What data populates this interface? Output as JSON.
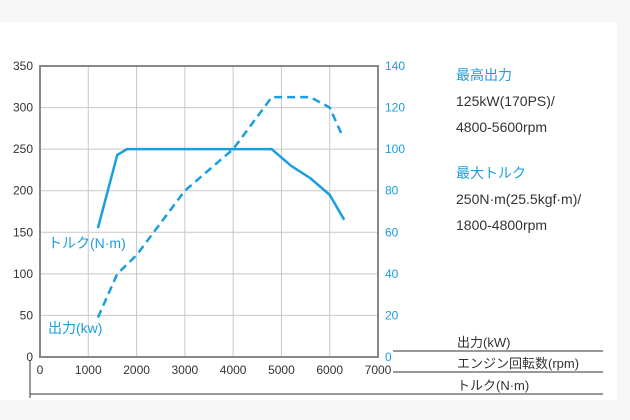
{
  "chart_data": {
    "type": "line",
    "x_axis": {
      "label": "エンジン回転数(rpm)",
      "range": [
        0,
        7000
      ],
      "ticks": [
        0,
        1000,
        2000,
        3000,
        4000,
        5000,
        6000,
        7000
      ]
    },
    "y_left": {
      "label": "トルク(N·m)",
      "range": [
        0,
        350
      ],
      "ticks": [
        0,
        50,
        100,
        150,
        200,
        250,
        300,
        350
      ]
    },
    "y_right": {
      "label": "出力(kW)",
      "range": [
        0,
        140
      ],
      "ticks": [
        0,
        20,
        40,
        60,
        80,
        100,
        120,
        140
      ]
    },
    "grid": true,
    "series": [
      {
        "name": "トルク(N·m)",
        "axis": "left",
        "style": "solid",
        "color": "#1a9ee0",
        "x": [
          1200,
          1600,
          1800,
          4800,
          5200,
          5600,
          6000,
          6300
        ],
        "y": [
          155,
          243,
          250,
          250,
          230,
          215,
          195,
          165
        ]
      },
      {
        "name": "出力(kw)",
        "axis": "right",
        "style": "dashed",
        "color": "#1a9ee0",
        "x": [
          1200,
          1600,
          2000,
          3000,
          4000,
          4800,
          5600,
          6000,
          6250
        ],
        "y": [
          19,
          40,
          49,
          80,
          100,
          125,
          125,
          120,
          107
        ]
      }
    ]
  },
  "legend_labels": {
    "torque": "トルク(N·m)",
    "power": "出力(kw)"
  },
  "axis_legend": {
    "power": "出力(kW)",
    "rpm": "エンジン回転数(rpm)",
    "torque": "トルク(N·m)"
  },
  "specs": {
    "max_power_title": "最高出力",
    "max_power_value": "125kW(170PS)/",
    "max_power_rpm": "4800-5600rpm",
    "max_torque_title": "最大トルク",
    "max_torque_value": "250N·m(25.5kgf·m)/",
    "max_torque_rpm": "1800-4800rpm"
  }
}
